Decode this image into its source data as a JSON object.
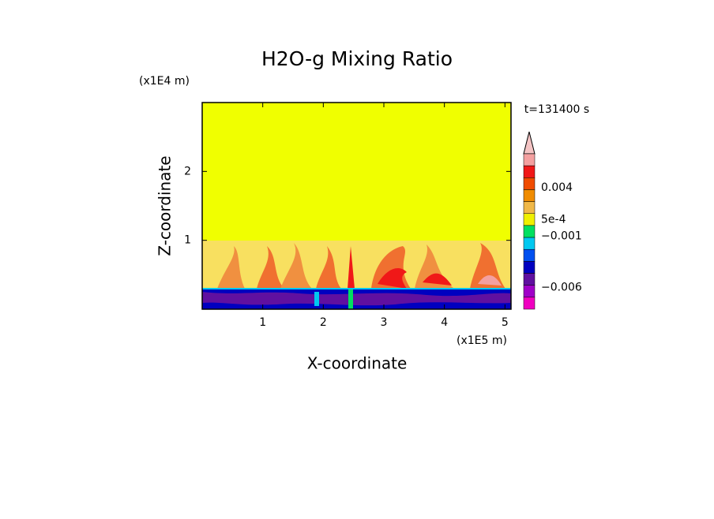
{
  "chart_data": {
    "type": "contour",
    "title": "H2O-g Mixing Ratio",
    "x_label": "X-coordinate",
    "y_label": "Z-coordinate",
    "x_unit": "(x1E5 m)",
    "y_unit": "(x1E4 m)",
    "time_label": "t=131400 s",
    "xlim": [
      0,
      5.1
    ],
    "ylim": [
      0,
      3
    ],
    "xticks": [
      1,
      2,
      3,
      4,
      5
    ],
    "yticks": [
      1,
      2
    ],
    "colorbar": {
      "colors": [
        "#f4a0a0",
        "#f01818",
        "#f04c00",
        "#f08c00",
        "#f0b848",
        "#f0f000",
        "#00e060",
        "#00c8f0",
        "#0050f0",
        "#0000c0",
        "#6010a0",
        "#a000c8",
        "#f000c0"
      ],
      "extend_color": "#f4c4c4",
      "ticks": [
        {
          "value": 0.004,
          "label": "0.004"
        },
        {
          "value": 0.0005,
          "label": "5e-4"
        },
        {
          "value": -0.001,
          "label": "−0.001"
        },
        {
          "value": -0.006,
          "label": "−0.006"
        }
      ]
    }
  }
}
